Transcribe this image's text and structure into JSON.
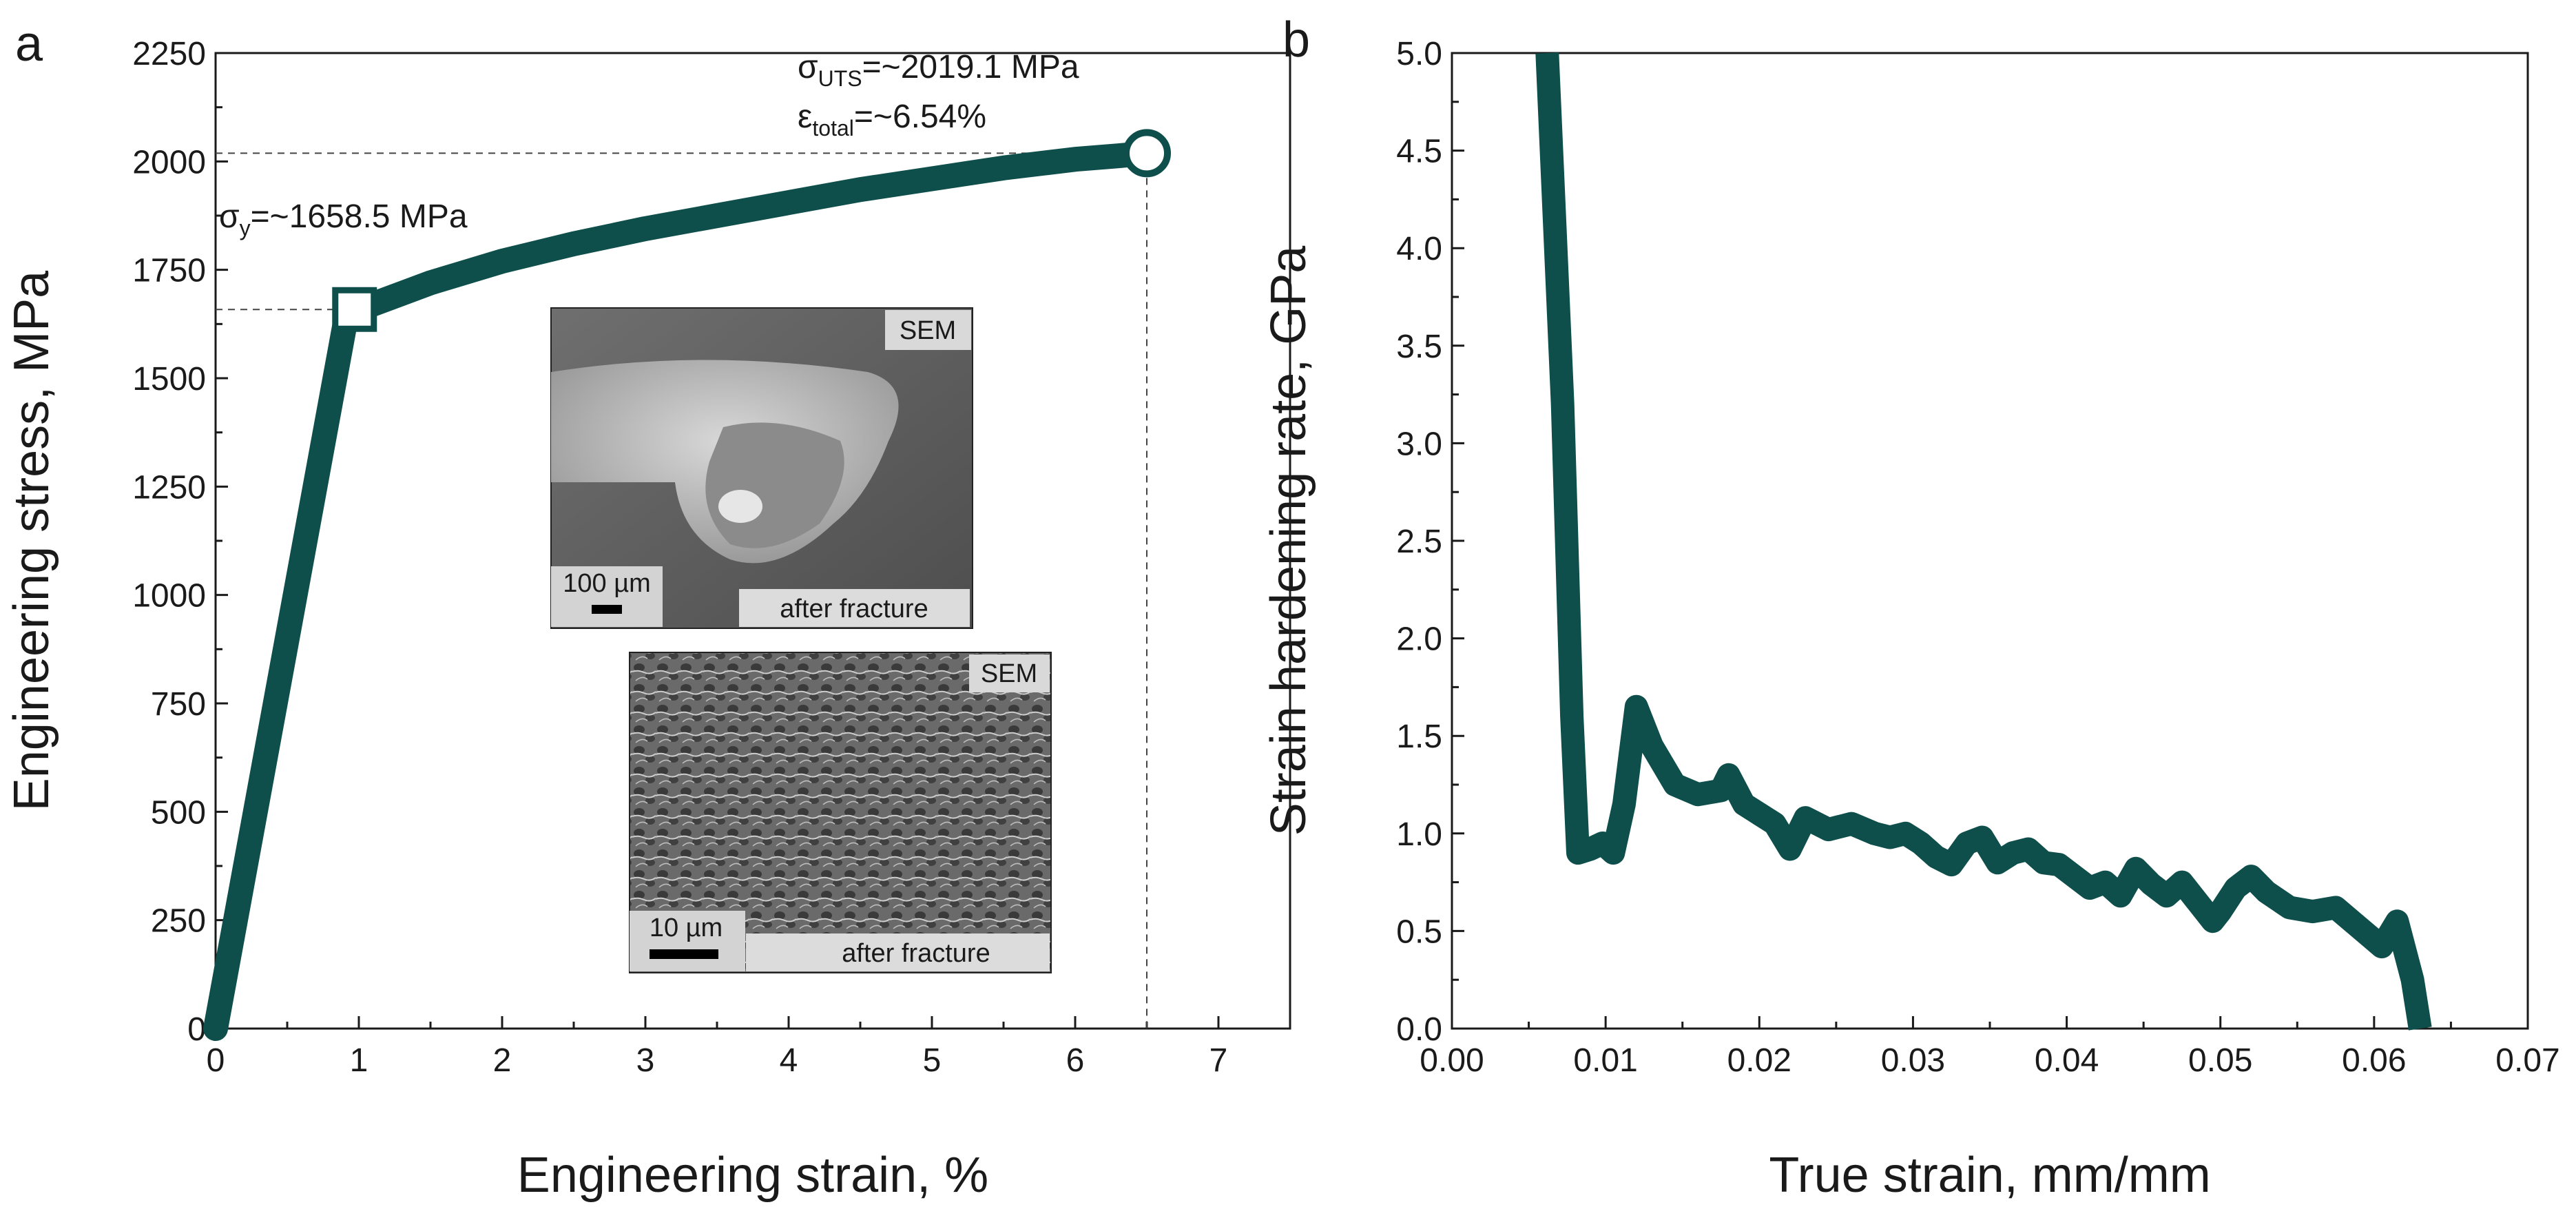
{
  "chart_data": [
    {
      "panel_label": "a",
      "type": "line",
      "xlabel": "Engineering strain, %",
      "ylabel": "Engineering stress, MPa",
      "xlim": [
        0,
        7.5
      ],
      "ylim": [
        0,
        2250
      ],
      "xticks": [
        0,
        1,
        2,
        3,
        4,
        5,
        6,
        7
      ],
      "yticks": [
        0,
        250,
        500,
        750,
        1000,
        1250,
        1500,
        1750,
        2000,
        2250
      ],
      "series": [
        {
          "name": "stress-strain",
          "color": "#0e4f4b",
          "x": [
            0,
            0.5,
            0.9,
            1.0,
            1.5,
            2.0,
            2.5,
            3.0,
            3.5,
            4.0,
            4.5,
            5.0,
            5.5,
            6.0,
            6.3,
            6.5
          ],
          "y": [
            0,
            900,
            1620,
            1658.5,
            1720,
            1770,
            1810,
            1845,
            1875,
            1905,
            1935,
            1960,
            1985,
            2005,
            2013,
            2019.1
          ]
        }
      ],
      "markers": {
        "yield": {
          "x": 0.97,
          "y": 1658.5,
          "shape": "square"
        },
        "uts": {
          "x": 6.5,
          "y": 2019.1,
          "shape": "circle"
        }
      },
      "annotations": {
        "yield_prefix": "σ",
        "yield_sub": "y",
        "yield_value": "=~1658.5 MPa",
        "uts_prefix": "σ",
        "uts_sub": "UTS",
        "uts_value": "=~2019.1 MPa",
        "total_prefix": "ε",
        "total_sub": "total",
        "total_value": "=~6.54%"
      },
      "insets": [
        {
          "tag": "SEM",
          "caption": "after fracture",
          "scale": "100 µm"
        },
        {
          "tag": "SEM",
          "caption": "after fracture",
          "scale": "10 µm"
        }
      ]
    },
    {
      "panel_label": "b",
      "type": "line",
      "xlabel": "True strain, mm/mm",
      "ylabel": "Strain hardening rate, GPa",
      "xlim": [
        0,
        0.07
      ],
      "ylim": [
        0,
        5.0
      ],
      "xticks": [
        "0.00",
        "0.01",
        "0.02",
        "0.03",
        "0.04",
        "0.05",
        "0.06",
        "0.07"
      ],
      "yticks": [
        "0.0",
        "0.5",
        "1.0",
        "1.5",
        "2.0",
        "2.5",
        "3.0",
        "3.5",
        "4.0",
        "4.5",
        "5.0"
      ],
      "series": [
        {
          "name": "hardening-rate",
          "color": "#0e4f4b",
          "x": [
            0.0062,
            0.0072,
            0.0078,
            0.0082,
            0.009,
            0.0098,
            0.0105,
            0.0112,
            0.012,
            0.013,
            0.0145,
            0.016,
            0.0175,
            0.018,
            0.019,
            0.02,
            0.021,
            0.022,
            0.023,
            0.0245,
            0.026,
            0.0275,
            0.0285,
            0.0295,
            0.0305,
            0.0315,
            0.0325,
            0.0335,
            0.0345,
            0.0355,
            0.0365,
            0.0375,
            0.0385,
            0.0395,
            0.0405,
            0.0415,
            0.0425,
            0.0435,
            0.0445,
            0.0455,
            0.0465,
            0.0475,
            0.0485,
            0.0495,
            0.05,
            0.051,
            0.052,
            0.053,
            0.0545,
            0.056,
            0.0575,
            0.059,
            0.0605,
            0.0615,
            0.0625,
            0.063
          ],
          "y": [
            5.0,
            3.2,
            1.6,
            0.9,
            0.92,
            0.95,
            0.9,
            1.15,
            1.65,
            1.45,
            1.25,
            1.2,
            1.22,
            1.3,
            1.15,
            1.1,
            1.05,
            0.92,
            1.08,
            1.02,
            1.05,
            1.0,
            0.98,
            1.0,
            0.95,
            0.88,
            0.84,
            0.95,
            0.98,
            0.85,
            0.9,
            0.92,
            0.85,
            0.84,
            0.78,
            0.72,
            0.75,
            0.68,
            0.82,
            0.74,
            0.68,
            0.75,
            0.65,
            0.55,
            0.6,
            0.72,
            0.78,
            0.7,
            0.62,
            0.6,
            0.62,
            0.52,
            0.42,
            0.55,
            0.25,
            0.0
          ]
        }
      ]
    }
  ]
}
